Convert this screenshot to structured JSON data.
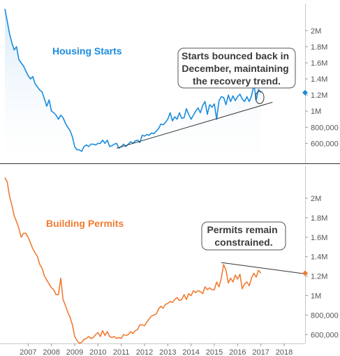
{
  "chart_data": [
    {
      "type": "area",
      "title": "Housing Starts",
      "annotation": [
        "Starts bounced back in",
        "December, maintaining",
        "the recovery trend."
      ],
      "color": "#1a8cde",
      "x_domain": [
        2006.0,
        2018.9
      ],
      "ylim": [
        430000,
        2380000
      ],
      "y_ticks": [
        {
          "value": 600000,
          "label": "600,000"
        },
        {
          "value": 800000,
          "label": "800,000"
        },
        {
          "value": 1000000,
          "label": "1M"
        },
        {
          "value": 1200000,
          "label": "1.2M"
        },
        {
          "value": 1400000,
          "label": "1.4M"
        },
        {
          "value": 1600000,
          "label": "1.6M"
        },
        {
          "value": 1800000,
          "label": "1.8M"
        },
        {
          "value": 2000000,
          "label": "2M"
        }
      ],
      "last_value": 1230000,
      "trendline": {
        "x": [
          2010.8,
          2017.5
        ],
        "y": [
          540000,
          1110000
        ]
      },
      "highlight": {
        "x": 2016.95,
        "y": 1170000
      },
      "x": [
        2006.0,
        2006.1,
        2006.2,
        2006.3,
        2006.4,
        2006.5,
        2006.6,
        2006.7,
        2006.8,
        2006.9,
        2007.0,
        2007.1,
        2007.2,
        2007.3,
        2007.4,
        2007.5,
        2007.6,
        2007.7,
        2007.8,
        2007.9,
        2008.0,
        2008.1,
        2008.2,
        2008.3,
        2008.4,
        2008.5,
        2008.6,
        2008.7,
        2008.8,
        2008.9,
        2009.0,
        2009.1,
        2009.2,
        2009.3,
        2009.4,
        2009.5,
        2009.6,
        2009.7,
        2009.8,
        2009.9,
        2010.0,
        2010.1,
        2010.2,
        2010.3,
        2010.4,
        2010.5,
        2010.6,
        2010.7,
        2010.8,
        2010.9,
        2011.0,
        2011.1,
        2011.2,
        2011.3,
        2011.4,
        2011.5,
        2011.6,
        2011.7,
        2011.8,
        2011.9,
        2012.0,
        2012.1,
        2012.2,
        2012.3,
        2012.4,
        2012.5,
        2012.6,
        2012.7,
        2012.8,
        2012.9,
        2013.0,
        2013.1,
        2013.2,
        2013.3,
        2013.4,
        2013.5,
        2013.6,
        2013.7,
        2013.8,
        2013.9,
        2014.0,
        2014.1,
        2014.2,
        2014.3,
        2014.4,
        2014.5,
        2014.6,
        2014.7,
        2014.8,
        2014.9,
        2015.0,
        2015.1,
        2015.2,
        2015.3,
        2015.4,
        2015.5,
        2015.6,
        2015.7,
        2015.8,
        2015.9,
        2016.0,
        2016.1,
        2016.2,
        2016.3,
        2016.4,
        2016.5,
        2016.6,
        2016.7,
        2016.8,
        2016.9,
        2017.0
      ],
      "values": [
        2270000,
        2120000,
        1960000,
        1850000,
        1760000,
        1800000,
        1640000,
        1600000,
        1560000,
        1500000,
        1440000,
        1400000,
        1430000,
        1340000,
        1300000,
        1260000,
        1240000,
        1150000,
        1060000,
        1140000,
        1000000,
        980000,
        950000,
        900000,
        950000,
        920000,
        850000,
        800000,
        760000,
        680000,
        560000,
        520000,
        520000,
        500000,
        560000,
        580000,
        560000,
        590000,
        590000,
        580000,
        600000,
        600000,
        640000,
        600000,
        640000,
        560000,
        570000,
        590000,
        600000,
        540000,
        560000,
        590000,
        560000,
        590000,
        620000,
        600000,
        630000,
        640000,
        610000,
        700000,
        690000,
        710000,
        700000,
        730000,
        720000,
        750000,
        780000,
        840000,
        830000,
        860000,
        900000,
        980000,
        880000,
        930000,
        900000,
        980000,
        910000,
        920000,
        1030000,
        960000,
        900000,
        950000,
        1000000,
        1040000,
        980000,
        1070000,
        1120000,
        960000,
        1080000,
        1050000,
        1090000,
        900000,
        1130000,
        1180000,
        1170000,
        1080000,
        1200000,
        1120000,
        1190000,
        1130000,
        1180000,
        1210000,
        1150000,
        1120000,
        1180000,
        1120000,
        1190000,
        1330000,
        1140000,
        1270000,
        1230000
      ]
    },
    {
      "type": "line",
      "title": "Building Permits",
      "annotation": [
        "Permits remain",
        "constrained."
      ],
      "color": "#f07c32",
      "x_domain": [
        2006.0,
        2018.9
      ],
      "ylim": [
        430000,
        2380000
      ],
      "y_ticks": [
        {
          "value": 600000,
          "label": "600,000"
        },
        {
          "value": 800000,
          "label": "800,000"
        },
        {
          "value": 1000000,
          "label": "1M"
        },
        {
          "value": 1200000,
          "label": "1.2M"
        },
        {
          "value": 1400000,
          "label": "1.4M"
        },
        {
          "value": 1600000,
          "label": "1.6M"
        },
        {
          "value": 1800000,
          "label": "1.8M"
        },
        {
          "value": 2000000,
          "label": "2M"
        }
      ],
      "last_value": 1230000,
      "trendline": {
        "x": [
          2015.3,
          2019.0
        ],
        "y": [
          1340000,
          1220000
        ]
      },
      "x_ticks": [
        "2007",
        "2008",
        "2009",
        "2010",
        "2011",
        "2012",
        "2013",
        "2014",
        "2015",
        "2016",
        "2017",
        "2018"
      ],
      "x_tick_values": [
        2007,
        2008,
        2009,
        2010,
        2011,
        2012,
        2013,
        2014,
        2015,
        2016,
        2017,
        2018
      ],
      "x": [
        2006.0,
        2006.1,
        2006.2,
        2006.3,
        2006.4,
        2006.5,
        2006.6,
        2006.7,
        2006.8,
        2006.9,
        2007.0,
        2007.1,
        2007.2,
        2007.3,
        2007.4,
        2007.5,
        2007.6,
        2007.7,
        2007.8,
        2007.9,
        2008.0,
        2008.1,
        2008.2,
        2008.3,
        2008.4,
        2008.5,
        2008.6,
        2008.7,
        2008.8,
        2008.9,
        2009.0,
        2009.1,
        2009.2,
        2009.3,
        2009.4,
        2009.5,
        2009.6,
        2009.7,
        2009.8,
        2009.9,
        2010.0,
        2010.1,
        2010.2,
        2010.3,
        2010.4,
        2010.5,
        2010.6,
        2010.7,
        2010.8,
        2010.9,
        2011.0,
        2011.1,
        2011.2,
        2011.3,
        2011.4,
        2011.5,
        2011.6,
        2011.7,
        2011.8,
        2011.9,
        2012.0,
        2012.1,
        2012.2,
        2012.3,
        2012.4,
        2012.5,
        2012.6,
        2012.7,
        2012.8,
        2012.9,
        2013.0,
        2013.1,
        2013.2,
        2013.3,
        2013.4,
        2013.5,
        2013.6,
        2013.7,
        2013.8,
        2013.9,
        2014.0,
        2014.1,
        2014.2,
        2014.3,
        2014.4,
        2014.5,
        2014.6,
        2014.7,
        2014.8,
        2014.9,
        2015.0,
        2015.1,
        2015.2,
        2015.3,
        2015.4,
        2015.5,
        2015.6,
        2015.7,
        2015.8,
        2015.9,
        2016.0,
        2016.1,
        2016.2,
        2016.3,
        2016.4,
        2016.5,
        2016.6,
        2016.7,
        2016.8,
        2016.9,
        2017.0
      ],
      "values": [
        2210000,
        2170000,
        2020000,
        1930000,
        1820000,
        1760000,
        1690000,
        1600000,
        1640000,
        1640000,
        1600000,
        1540000,
        1480000,
        1440000,
        1400000,
        1320000,
        1280000,
        1200000,
        1160000,
        1120000,
        1080000,
        1060000,
        1010000,
        1010000,
        1180000,
        960000,
        900000,
        830000,
        780000,
        700000,
        580000,
        540000,
        510000,
        520000,
        550000,
        560000,
        580000,
        560000,
        570000,
        600000,
        620000,
        580000,
        640000,
        590000,
        630000,
        580000,
        570000,
        580000,
        560000,
        570000,
        560000,
        600000,
        590000,
        600000,
        630000,
        610000,
        640000,
        650000,
        700000,
        700000,
        690000,
        730000,
        760000,
        790000,
        800000,
        810000,
        860000,
        890000,
        870000,
        910000,
        920000,
        940000,
        930000,
        960000,
        980000,
        950000,
        960000,
        1010000,
        960000,
        1020000,
        1000000,
        1050000,
        1030000,
        1050000,
        1040000,
        1020000,
        1090000,
        1060000,
        1080000,
        1060000,
        1060000,
        1140000,
        1090000,
        1180000,
        1320000,
        1260000,
        1130000,
        1180000,
        1140000,
        1210000,
        1170000,
        1220000,
        1070000,
        1120000,
        1140000,
        1100000,
        1180000,
        1230000,
        1190000,
        1260000,
        1230000
      ]
    }
  ]
}
